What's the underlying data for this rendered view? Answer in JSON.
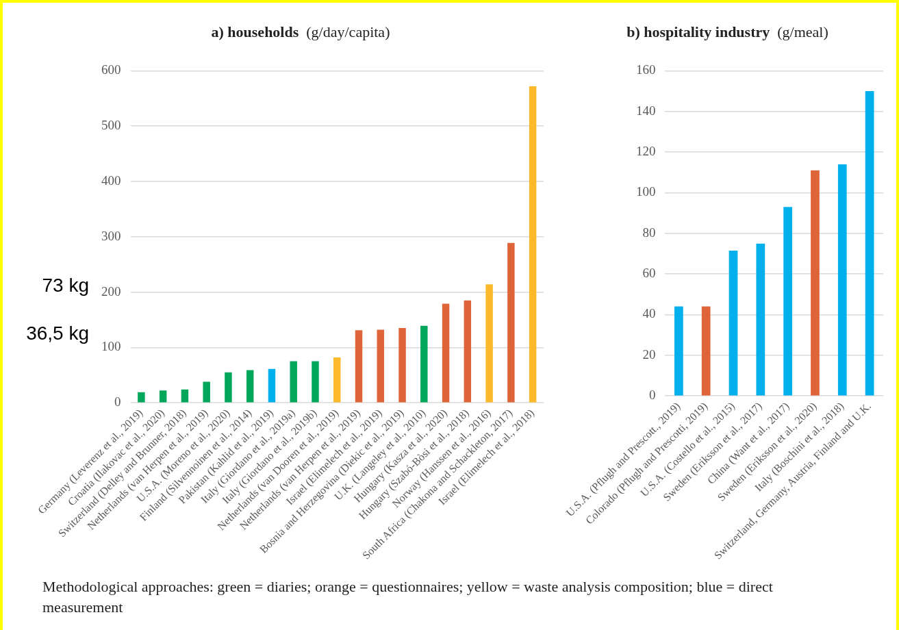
{
  "chart_data": [
    {
      "type": "bar",
      "title": "a) households",
      "subtitle": "(g/day/capita)",
      "categories": [
        "Germany (Leverenz et al., 2019)",
        "Croatia (Ilakovac et al., 2020)",
        "Switzerland (Delley and Brunner, 2018)",
        "Netherlands (van Herpen et al., 2019)",
        "U.S.A. (Moreno et al., 2020)",
        "Finland (Silvennoinen et al., 2014)",
        "Pakistan (Kahlid et al., 2019)",
        "Italy (Giordano et al., 2019a)",
        "Italy (Giordano et al., 2019b)",
        "Netherlands (van Dooren et al., 2019)",
        "Netherlands (van Herpen et al., 2019)",
        "Israel (Elimelech et al., 2019)",
        "Bosnia and Herzegovina (Diekic et al., 2019)",
        "U.K. (Langeley et al., 2010)",
        "Hungary (Kasza et al., 2020)",
        "Hungary (Szabó-Bòsi et al., 2018)",
        "Norway (Hanssen et al., 2016)",
        "South Africa (Chakona and Schackleton, 2017)",
        "Israel (Elimelech et al., 2018)"
      ],
      "values": [
        19,
        22,
        24,
        38,
        55,
        59,
        61,
        75,
        75,
        82,
        131,
        132,
        135,
        139,
        179,
        185,
        214,
        289,
        572
      ],
      "colors": [
        "#00a65a",
        "#00a65a",
        "#00a65a",
        "#00a65a",
        "#00a65a",
        "#00a65a",
        "#00b0ec",
        "#00a65a",
        "#00a65a",
        "#fbb92b",
        "#e0643a",
        "#e0643a",
        "#e0643a",
        "#00a65a",
        "#e0643a",
        "#e0643a",
        "#fbb92b",
        "#e0643a",
        "#fbb92b"
      ],
      "ylim": [
        0,
        600
      ],
      "yticks": [
        0,
        100,
        200,
        300,
        400,
        500,
        600
      ],
      "grid": "y",
      "annotations": [
        "73 kg",
        "36,5 kg"
      ]
    },
    {
      "type": "bar",
      "title": "b) hospitality industry",
      "subtitle": "(g/meal)",
      "categories": [
        "U.S.A. (Pflugh and Prescott., 2019)",
        "Colorado (Pflugh and Prescotti, 2019)",
        "U.S.A. (Costello et al., 2015)",
        "Sweden (Eriksson et al., 2017)",
        "China (Want et al., 2017)",
        "Sweden (Eriksson et al., 2020)",
        "Italy (Boschini et al., 2018)",
        "Switzerland, Germany, Austria, Finland and U.K."
      ],
      "values": [
        44,
        44,
        71.5,
        75,
        93,
        111,
        114,
        150
      ],
      "colors": [
        "#00b0ec",
        "#e0643a",
        "#00b0ec",
        "#00b0ec",
        "#00b0ec",
        "#e0643a",
        "#00b0ec",
        "#00b0ec"
      ],
      "annotations": [
        "Methodological approaches: green = diaries; orange = questionnaires; yellow = waste analysis composition; blue = direct measurement"
      ],
      "ylim": [
        0,
        160
      ],
      "yticks": [
        0,
        20,
        40,
        60,
        80,
        100,
        120,
        140,
        160
      ],
      "grid": "y"
    }
  ]
}
